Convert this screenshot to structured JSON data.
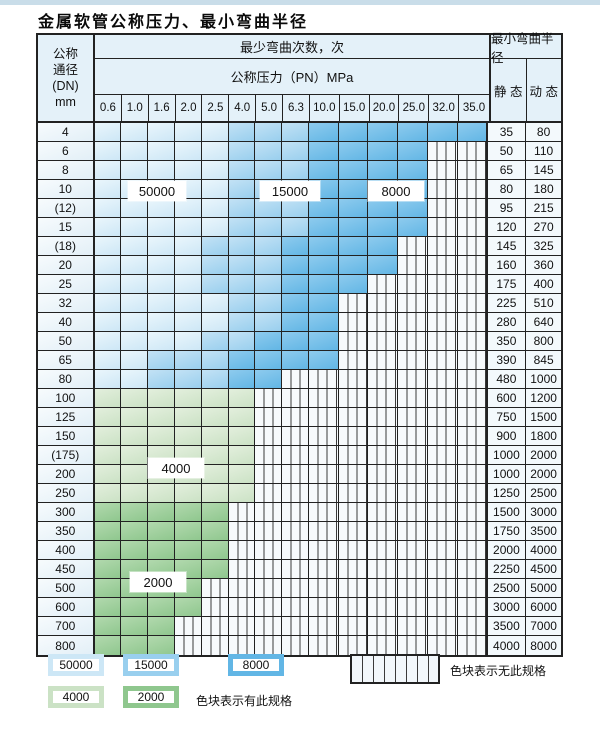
{
  "page": {
    "title": "金属软管公称压力、最小弯曲半径"
  },
  "table": {
    "header": {
      "dn_lines": [
        "公称",
        "通径",
        "(DN)",
        "mm"
      ],
      "cycles_label": "最少弯曲次数，次",
      "pressure_label": "公称压力（PN）MPa",
      "radius_label": "最小弯曲半径",
      "static_label": "静 态",
      "dynamic_label": "动 态",
      "pressure_columns": [
        "0.6",
        "1.0",
        "1.6",
        "2.0",
        "2.5",
        "4.0",
        "5.0",
        "6.3",
        "10.0",
        "15.0",
        "20.0",
        "25.0",
        "32.0",
        "35.0"
      ]
    },
    "region_labels": {
      "b50000": "50000",
      "b15000": "15000",
      "b8000": "8000",
      "b4000": "4000",
      "b2000": "2000"
    },
    "rows": [
      {
        "dn": "4",
        "bands": [
          [
            "c50",
            5
          ],
          [
            "c15",
            3
          ],
          [
            "c8",
            6
          ]
        ],
        "st": "35",
        "dy": "80"
      },
      {
        "dn": "6",
        "bands": [
          [
            "c50",
            5
          ],
          [
            "c15",
            3
          ],
          [
            "c8",
            4
          ]
        ],
        "st": "50",
        "dy": "110"
      },
      {
        "dn": "8",
        "bands": [
          [
            "c50",
            5
          ],
          [
            "c15",
            3
          ],
          [
            "c8",
            4
          ]
        ],
        "st": "65",
        "dy": "145"
      },
      {
        "dn": "10",
        "bands": [
          [
            "c50",
            5
          ],
          [
            "c15",
            3
          ],
          [
            "c8",
            4
          ]
        ],
        "st": "80",
        "dy": "180"
      },
      {
        "dn": "(12)",
        "bands": [
          [
            "c50",
            5
          ],
          [
            "c15",
            3
          ],
          [
            "c8",
            4
          ]
        ],
        "st": "95",
        "dy": "215"
      },
      {
        "dn": "15",
        "bands": [
          [
            "c50",
            5
          ],
          [
            "c15",
            3
          ],
          [
            "c8",
            4
          ]
        ],
        "st": "120",
        "dy": "270"
      },
      {
        "dn": "(18)",
        "bands": [
          [
            "c50",
            4
          ],
          [
            "c15",
            3
          ],
          [
            "c8",
            4
          ]
        ],
        "st": "145",
        "dy": "325"
      },
      {
        "dn": "20",
        "bands": [
          [
            "c50",
            4
          ],
          [
            "c15",
            3
          ],
          [
            "c8",
            4
          ]
        ],
        "st": "160",
        "dy": "360"
      },
      {
        "dn": "25",
        "bands": [
          [
            "c50",
            4
          ],
          [
            "c15",
            3
          ],
          [
            "c8",
            3
          ]
        ],
        "st": "175",
        "dy": "400"
      },
      {
        "dn": "32",
        "bands": [
          [
            "c50",
            5
          ],
          [
            "c15",
            2
          ],
          [
            "c8",
            2
          ]
        ],
        "st": "225",
        "dy": "510"
      },
      {
        "dn": "40",
        "bands": [
          [
            "c50",
            5
          ],
          [
            "c15",
            2
          ],
          [
            "c8",
            2
          ]
        ],
        "st": "280",
        "dy": "640"
      },
      {
        "dn": "50",
        "bands": [
          [
            "c50",
            4
          ],
          [
            "c15",
            2
          ],
          [
            "c8",
            3
          ]
        ],
        "st": "350",
        "dy": "800"
      },
      {
        "dn": "65",
        "bands": [
          [
            "c50",
            2
          ],
          [
            "c15",
            3
          ],
          [
            "c8",
            4
          ]
        ],
        "st": "390",
        "dy": "845"
      },
      {
        "dn": "80",
        "bands": [
          [
            "c50",
            2
          ],
          [
            "c15",
            3
          ],
          [
            "c8",
            2
          ]
        ],
        "st": "480",
        "dy": "1000"
      },
      {
        "dn": "100",
        "bands": [
          [
            "c4",
            6
          ]
        ],
        "st": "600",
        "dy": "1200"
      },
      {
        "dn": "125",
        "bands": [
          [
            "c4",
            6
          ]
        ],
        "st": "750",
        "dy": "1500"
      },
      {
        "dn": "150",
        "bands": [
          [
            "c4",
            6
          ]
        ],
        "st": "900",
        "dy": "1800"
      },
      {
        "dn": "(175)",
        "bands": [
          [
            "c4",
            6
          ]
        ],
        "st": "1000",
        "dy": "2000"
      },
      {
        "dn": "200",
        "bands": [
          [
            "c4",
            6
          ]
        ],
        "st": "1000",
        "dy": "2000"
      },
      {
        "dn": "250",
        "bands": [
          [
            "c4",
            6
          ]
        ],
        "st": "1250",
        "dy": "2500"
      },
      {
        "dn": "300",
        "bands": [
          [
            "c2",
            5
          ]
        ],
        "st": "1500",
        "dy": "3000"
      },
      {
        "dn": "350",
        "bands": [
          [
            "c2",
            5
          ]
        ],
        "st": "1750",
        "dy": "3500"
      },
      {
        "dn": "400",
        "bands": [
          [
            "c2",
            5
          ]
        ],
        "st": "2000",
        "dy": "4000"
      },
      {
        "dn": "450",
        "bands": [
          [
            "c2",
            5
          ]
        ],
        "st": "2250",
        "dy": "4500"
      },
      {
        "dn": "500",
        "bands": [
          [
            "c2",
            4
          ]
        ],
        "st": "2500",
        "dy": "5000"
      },
      {
        "dn": "600",
        "bands": [
          [
            "c2",
            4
          ]
        ],
        "st": "3000",
        "dy": "6000"
      },
      {
        "dn": "700",
        "bands": [
          [
            "c2",
            3
          ]
        ],
        "st": "3500",
        "dy": "7000"
      },
      {
        "dn": "800",
        "bands": [
          [
            "c2",
            3
          ]
        ],
        "st": "4000",
        "dy": "8000"
      }
    ]
  },
  "legend": {
    "items_row1": [
      {
        "label": "50000",
        "band": "c50"
      },
      {
        "label": "15000",
        "band": "c15"
      },
      {
        "label": "8000",
        "band": "c8"
      }
    ],
    "items_row2": [
      {
        "label": "4000",
        "band": "c4"
      },
      {
        "label": "2000",
        "band": "c2"
      }
    ],
    "has_note": "色块表示有此规格",
    "no_note": "色块表示无此规格"
  },
  "colors": {
    "band_50000": "#cde7f6",
    "band_15000": "#99cfee",
    "band_8000": "#62b6e5",
    "band_4000": "#cbe2c5",
    "band_2000": "#8fc78e",
    "grid": "#222222",
    "header_bg": "#e4f1f9"
  }
}
